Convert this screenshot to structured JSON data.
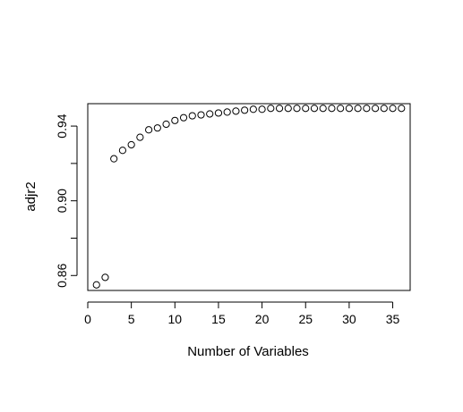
{
  "chart_data": {
    "type": "scatter",
    "xlabel": "Number of Variables",
    "ylabel": "adjr2",
    "xlim": [
      0,
      37
    ],
    "ylim": [
      0.852,
      0.952
    ],
    "x_ticks": [
      0,
      5,
      10,
      15,
      20,
      25,
      30,
      35
    ],
    "y_ticks": [
      0.86,
      0.88,
      0.9,
      0.92,
      0.94
    ],
    "y_tick_labels": {
      "0.86": "0.86",
      "0.90": "0.90",
      "0.94": "0.94"
    },
    "marker": "open-circle",
    "grid": false,
    "x": [
      1,
      2,
      3,
      4,
      5,
      6,
      7,
      8,
      9,
      10,
      11,
      12,
      13,
      14,
      15,
      16,
      17,
      18,
      19,
      20,
      21,
      22,
      23,
      24,
      25,
      26,
      27,
      28,
      29,
      30,
      31,
      32,
      33,
      34,
      35,
      36
    ],
    "y": [
      0.855,
      0.859,
      0.9225,
      0.927,
      0.93,
      0.934,
      0.938,
      0.939,
      0.941,
      0.943,
      0.9445,
      0.9455,
      0.946,
      0.9465,
      0.947,
      0.9475,
      0.948,
      0.9485,
      0.949,
      0.949,
      0.9495,
      0.9495,
      0.9495,
      0.9495,
      0.9495,
      0.9495,
      0.9495,
      0.9495,
      0.9495,
      0.9495,
      0.9495,
      0.9495,
      0.9495,
      0.9495,
      0.9495,
      0.9495
    ]
  }
}
